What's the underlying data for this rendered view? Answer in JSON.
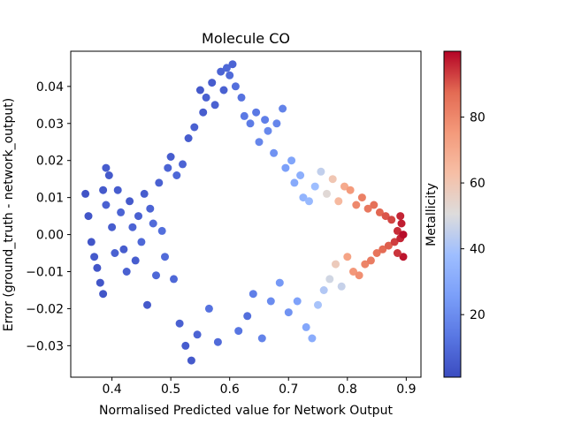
{
  "chart_data": {
    "type": "scatter",
    "title": "Molecule CO",
    "xlabel": "Normalised Predicted value for Network Output",
    "ylabel": "Error (ground_truth - network_output)",
    "xlim": [
      0.33,
      0.925
    ],
    "ylim": [
      -0.0385,
      0.0495
    ],
    "xticks": [
      0.4,
      0.5,
      0.6,
      0.7,
      0.8,
      0.9
    ],
    "xtick_labels": [
      "0.4",
      "0.5",
      "0.6",
      "0.7",
      "0.8",
      "0.9"
    ],
    "yticks": [
      -0.03,
      -0.02,
      -0.01,
      0.0,
      0.01,
      0.02,
      0.03,
      0.04
    ],
    "ytick_labels": [
      "−0.03",
      "−0.02",
      "−0.01",
      "0.00",
      "0.01",
      "0.02",
      "0.03",
      "0.04"
    ],
    "grid": false,
    "colorbar": {
      "label": "Metallicity",
      "colormap": "coolwarm",
      "range": [
        1,
        100
      ],
      "ticks": [
        20,
        40,
        60,
        80
      ],
      "tick_labels": [
        "20",
        "40",
        "60",
        "80"
      ]
    },
    "points": [
      [
        0.355,
        0.011,
        3
      ],
      [
        0.36,
        0.005,
        4
      ],
      [
        0.365,
        -0.002,
        4
      ],
      [
        0.37,
        -0.006,
        5
      ],
      [
        0.375,
        -0.009,
        4
      ],
      [
        0.38,
        -0.013,
        4
      ],
      [
        0.385,
        0.012,
        5
      ],
      [
        0.39,
        0.018,
        6
      ],
      [
        0.385,
        -0.016,
        4
      ],
      [
        0.39,
        0.008,
        7
      ],
      [
        0.395,
        0.016,
        5
      ],
      [
        0.4,
        0.002,
        6
      ],
      [
        0.405,
        -0.005,
        7
      ],
      [
        0.41,
        0.012,
        6
      ],
      [
        0.415,
        0.006,
        8
      ],
      [
        0.42,
        -0.004,
        6
      ],
      [
        0.425,
        -0.01,
        7
      ],
      [
        0.43,
        0.009,
        5
      ],
      [
        0.435,
        0.002,
        8
      ],
      [
        0.44,
        -0.007,
        6
      ],
      [
        0.445,
        0.005,
        7
      ],
      [
        0.45,
        -0.002,
        9
      ],
      [
        0.455,
        0.011,
        6
      ],
      [
        0.46,
        -0.019,
        5
      ],
      [
        0.465,
        0.007,
        8
      ],
      [
        0.47,
        0.003,
        10
      ],
      [
        0.475,
        -0.011,
        9
      ],
      [
        0.48,
        0.014,
        7
      ],
      [
        0.485,
        0.001,
        11
      ],
      [
        0.49,
        -0.006,
        10
      ],
      [
        0.495,
        0.018,
        8
      ],
      [
        0.5,
        0.021,
        6
      ],
      [
        0.505,
        -0.012,
        9
      ],
      [
        0.51,
        0.016,
        9
      ],
      [
        0.515,
        -0.024,
        7
      ],
      [
        0.52,
        0.019,
        8
      ],
      [
        0.525,
        -0.03,
        6
      ],
      [
        0.53,
        0.026,
        6
      ],
      [
        0.535,
        -0.034,
        5
      ],
      [
        0.54,
        0.029,
        7
      ],
      [
        0.545,
        -0.027,
        8
      ],
      [
        0.55,
        0.039,
        5
      ],
      [
        0.555,
        0.033,
        6
      ],
      [
        0.56,
        0.037,
        7
      ],
      [
        0.565,
        -0.02,
        12
      ],
      [
        0.57,
        0.041,
        6
      ],
      [
        0.575,
        0.035,
        7
      ],
      [
        0.58,
        -0.029,
        10
      ],
      [
        0.585,
        0.044,
        8
      ],
      [
        0.59,
        0.039,
        7
      ],
      [
        0.595,
        0.045,
        9
      ],
      [
        0.6,
        0.043,
        10
      ],
      [
        0.605,
        0.046,
        8
      ],
      [
        0.61,
        0.04,
        11
      ],
      [
        0.615,
        -0.026,
        13
      ],
      [
        0.62,
        0.037,
        12
      ],
      [
        0.625,
        0.032,
        14
      ],
      [
        0.63,
        -0.022,
        11
      ],
      [
        0.635,
        0.03,
        15
      ],
      [
        0.64,
        -0.016,
        16
      ],
      [
        0.645,
        0.033,
        14
      ],
      [
        0.65,
        0.025,
        18
      ],
      [
        0.655,
        -0.028,
        17
      ],
      [
        0.66,
        0.031,
        16
      ],
      [
        0.665,
        0.028,
        19
      ],
      [
        0.67,
        -0.018,
        20
      ],
      [
        0.675,
        0.022,
        22
      ],
      [
        0.68,
        0.03,
        18
      ],
      [
        0.685,
        -0.013,
        24
      ],
      [
        0.69,
        0.034,
        17
      ],
      [
        0.695,
        0.018,
        26
      ],
      [
        0.7,
        -0.021,
        22
      ],
      [
        0.705,
        0.02,
        28
      ],
      [
        0.71,
        0.014,
        30
      ],
      [
        0.715,
        -0.018,
        27
      ],
      [
        0.72,
        0.016,
        32
      ],
      [
        0.725,
        0.01,
        34
      ],
      [
        0.73,
        -0.025,
        29
      ],
      [
        0.735,
        0.009,
        36
      ],
      [
        0.74,
        -0.028,
        31
      ],
      [
        0.745,
        0.013,
        38
      ],
      [
        0.75,
        -0.019,
        40
      ],
      [
        0.755,
        0.017,
        45
      ],
      [
        0.76,
        -0.015,
        42
      ],
      [
        0.765,
        0.011,
        52
      ],
      [
        0.77,
        -0.012,
        48
      ],
      [
        0.775,
        0.015,
        60
      ],
      [
        0.78,
        -0.008,
        58
      ],
      [
        0.785,
        0.009,
        65
      ],
      [
        0.79,
        -0.014,
        46
      ],
      [
        0.795,
        0.013,
        70
      ],
      [
        0.8,
        -0.006,
        72
      ],
      [
        0.805,
        0.012,
        75
      ],
      [
        0.81,
        -0.01,
        76
      ],
      [
        0.815,
        0.008,
        80
      ],
      [
        0.82,
        -0.011,
        78
      ],
      [
        0.825,
        0.01,
        82
      ],
      [
        0.83,
        -0.008,
        81
      ],
      [
        0.835,
        0.007,
        84
      ],
      [
        0.84,
        -0.007,
        83
      ],
      [
        0.845,
        0.008,
        86
      ],
      [
        0.85,
        -0.005,
        85
      ],
      [
        0.855,
        0.006,
        88
      ],
      [
        0.86,
        -0.004,
        87
      ],
      [
        0.865,
        0.005,
        90
      ],
      [
        0.87,
        -0.003,
        89
      ],
      [
        0.875,
        0.004,
        92
      ],
      [
        0.88,
        -0.002,
        93
      ],
      [
        0.885,
        0.001,
        95
      ],
      [
        0.89,
        -0.001,
        96
      ],
      [
        0.892,
        0.003,
        97
      ],
      [
        0.895,
        -0.006,
        98
      ],
      [
        0.895,
        0.0,
        99
      ],
      [
        0.89,
        0.005,
        96
      ],
      [
        0.885,
        -0.005,
        94
      ]
    ]
  }
}
